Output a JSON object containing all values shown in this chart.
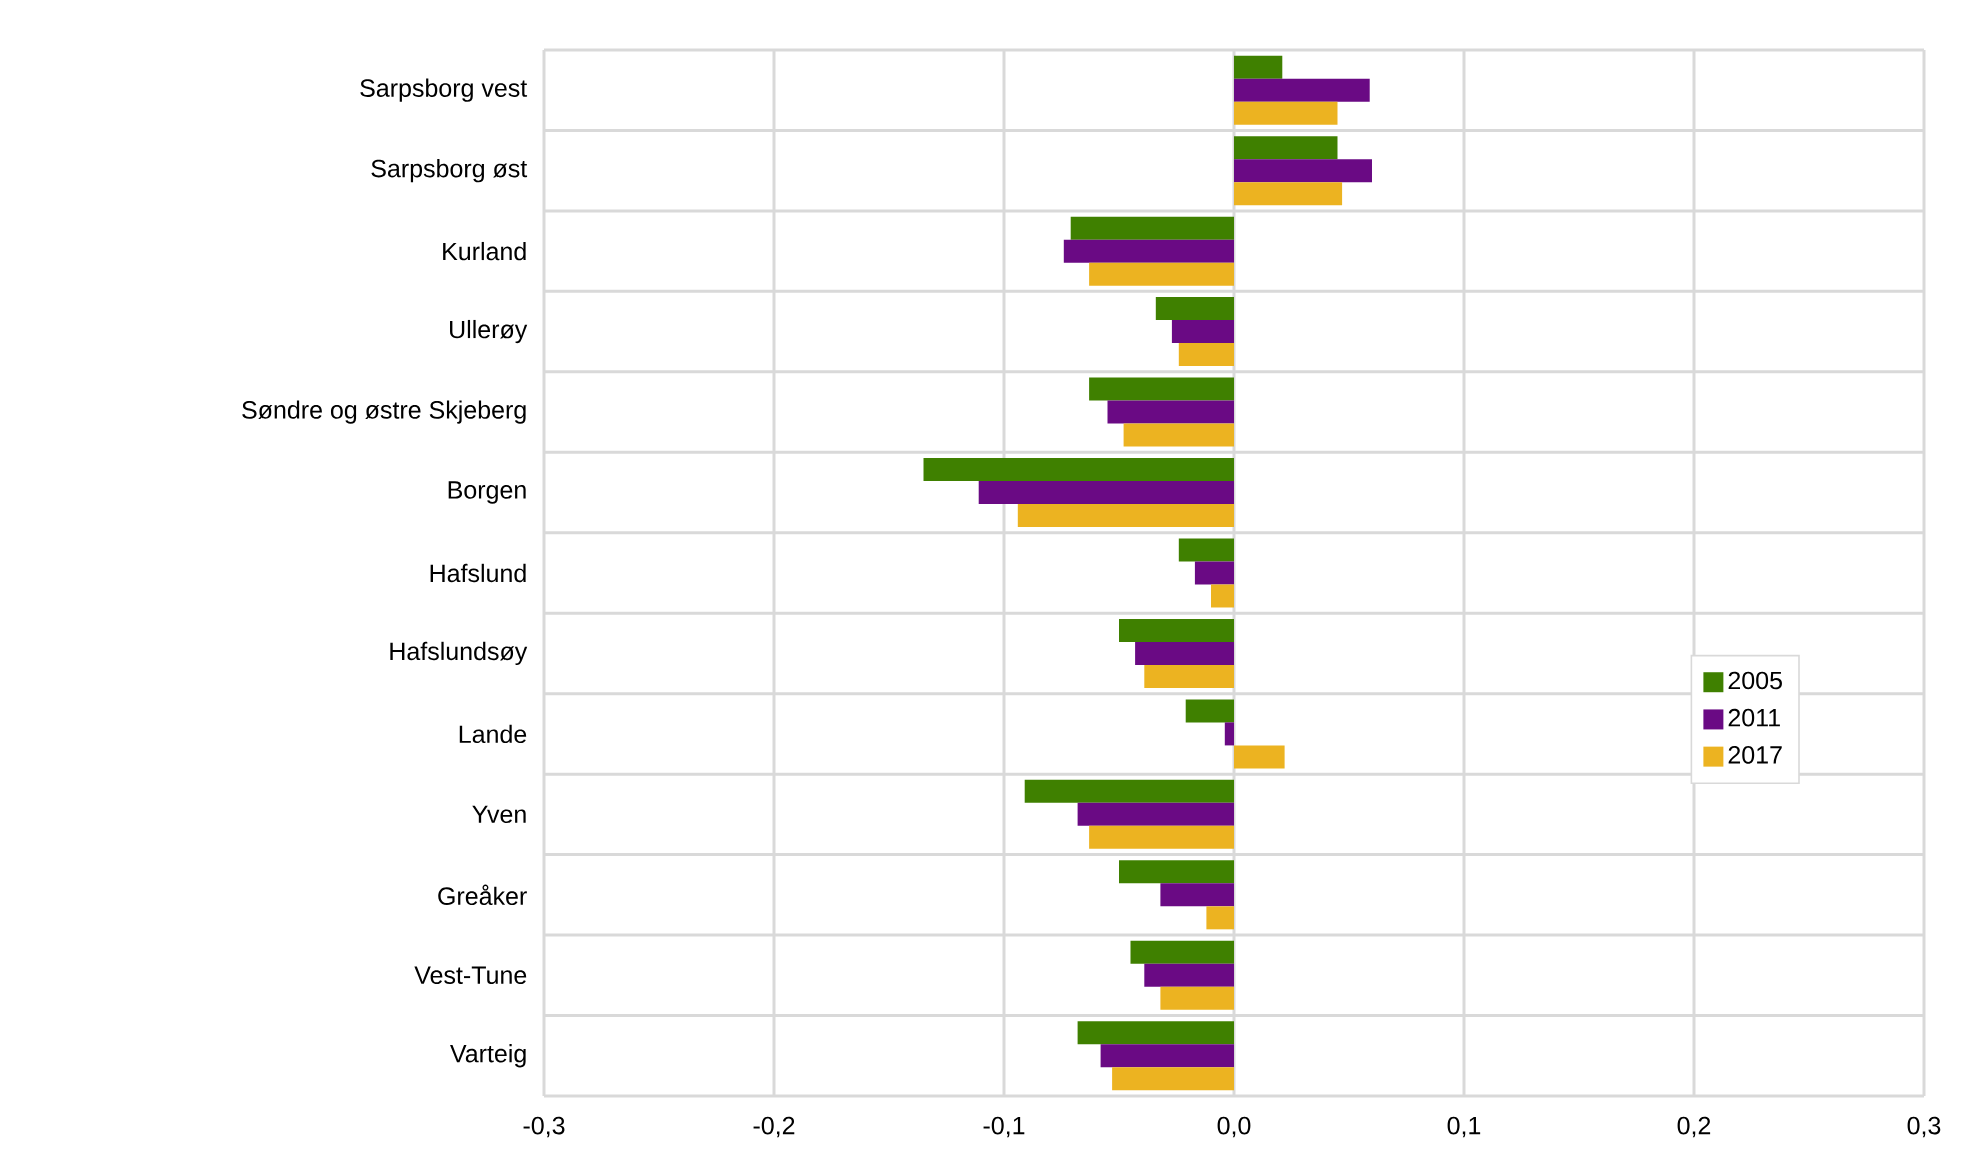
{
  "chart_data": {
    "type": "bar",
    "orientation": "horizontal",
    "categories": [
      "Sarpsborg vest",
      "Sarpsborg øst",
      "Kurland",
      "Ullerøy",
      "Søndre og østre Skjeberg",
      "Borgen",
      "Hafslund",
      "Hafslundsøy",
      "Lande",
      "Yven",
      "Greåker",
      "Vest-Tune",
      "Varteig"
    ],
    "series": [
      {
        "name": "2005",
        "color": "#3f8000",
        "values": [
          0.021,
          0.045,
          -0.071,
          -0.034,
          -0.063,
          -0.135,
          -0.024,
          -0.05,
          -0.021,
          -0.091,
          -0.05,
          -0.045,
          -0.068
        ]
      },
      {
        "name": "2011",
        "color": "#6a0a84",
        "values": [
          0.059,
          0.06,
          -0.074,
          -0.027,
          -0.055,
          -0.111,
          -0.017,
          -0.043,
          -0.004,
          -0.068,
          -0.032,
          -0.039,
          -0.058
        ]
      },
      {
        "name": "2017",
        "color": "#ecb321",
        "values": [
          0.045,
          0.047,
          -0.063,
          -0.024,
          -0.048,
          -0.094,
          -0.01,
          -0.039,
          0.022,
          -0.063,
          -0.012,
          -0.032,
          -0.053
        ]
      }
    ],
    "xlim": [
      -0.3,
      0.3
    ],
    "xticks": [
      {
        "value": -0.3,
        "label": "-0,3"
      },
      {
        "value": -0.2,
        "label": "-0,2"
      },
      {
        "value": -0.1,
        "label": "-0,1"
      },
      {
        "value": 0.0,
        "label": "0,0"
      },
      {
        "value": 0.1,
        "label": "0,1"
      },
      {
        "value": 0.2,
        "label": "0,2"
      },
      {
        "value": 0.3,
        "label": "0,3"
      }
    ],
    "grid": true,
    "legend": "right"
  }
}
